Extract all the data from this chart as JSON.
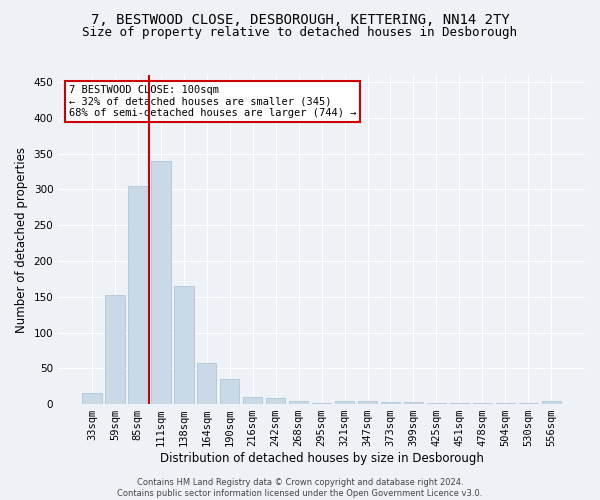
{
  "title": "7, BESTWOOD CLOSE, DESBOROUGH, KETTERING, NN14 2TY",
  "subtitle": "Size of property relative to detached houses in Desborough",
  "xlabel": "Distribution of detached houses by size in Desborough",
  "ylabel": "Number of detached properties",
  "bar_labels": [
    "33sqm",
    "59sqm",
    "85sqm",
    "111sqm",
    "138sqm",
    "164sqm",
    "190sqm",
    "216sqm",
    "242sqm",
    "268sqm",
    "295sqm",
    "321sqm",
    "347sqm",
    "373sqm",
    "399sqm",
    "425sqm",
    "451sqm",
    "478sqm",
    "504sqm",
    "530sqm",
    "556sqm"
  ],
  "bar_heights": [
    15,
    153,
    305,
    340,
    165,
    57,
    35,
    10,
    8,
    5,
    2,
    5,
    4,
    3,
    3,
    1,
    1,
    1,
    1,
    1,
    4
  ],
  "bar_color": "#c9d9e8",
  "bar_edgecolor": "#a8bfd0",
  "bar_width": 0.85,
  "ylim": [
    0,
    460
  ],
  "yticks": [
    0,
    50,
    100,
    150,
    200,
    250,
    300,
    350,
    400,
    450
  ],
  "vline_color": "#cc0000",
  "vline_x": 2.5,
  "annotation_text": "7 BESTWOOD CLOSE: 100sqm\n← 32% of detached houses are smaller (345)\n68% of semi-detached houses are larger (744) →",
  "annotation_box_color": "#ffffff",
  "annotation_box_edgecolor": "#cc0000",
  "footer": "Contains HM Land Registry data © Crown copyright and database right 2024.\nContains public sector information licensed under the Open Government Licence v3.0.",
  "background_color": "#eef2f7",
  "grid_color": "#ffffff",
  "title_fontsize": 10,
  "subtitle_fontsize": 9,
  "xlabel_fontsize": 8.5,
  "ylabel_fontsize": 8.5,
  "tick_fontsize": 7.5,
  "annotation_fontsize": 7.5,
  "footer_fontsize": 6
}
